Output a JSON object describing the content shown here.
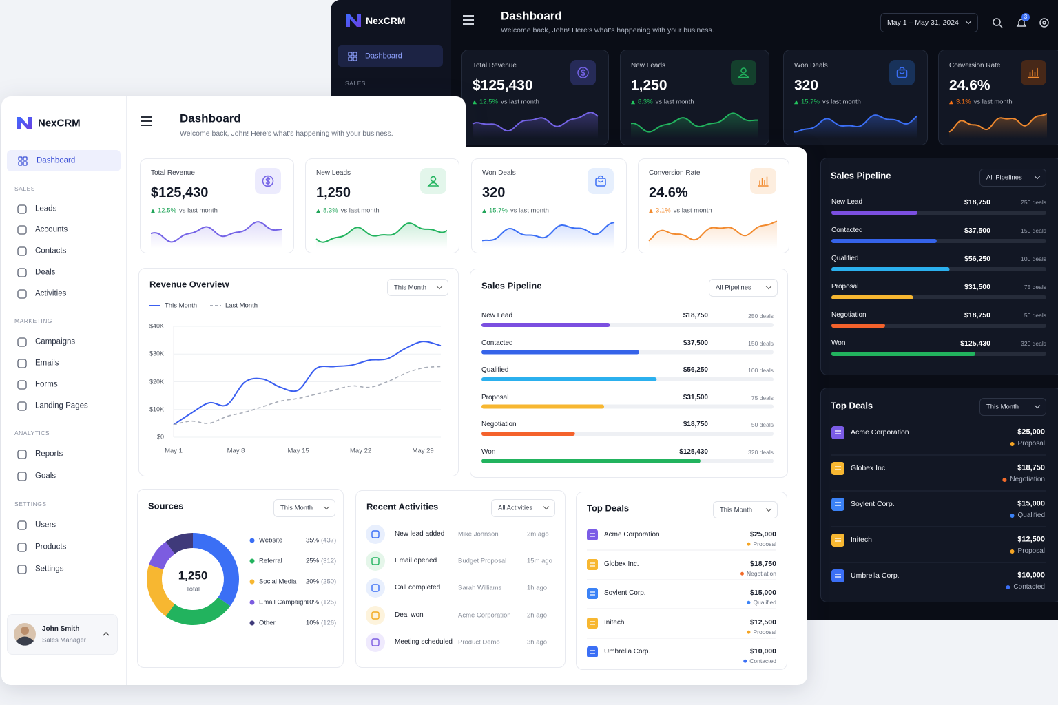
{
  "dark": {
    "sidebar": {
      "brand": "NexCRM",
      "active": "Dashboard",
      "section": "SALES"
    },
    "header": {
      "title": "Dashboard",
      "subtitle": "Welcome back, John! Here's what's happening with your business.",
      "date_range": "May 1 – May 31, 2024",
      "notifications": "3"
    },
    "kpis": [
      {
        "label": "Total Revenue",
        "value": "$125,430",
        "change": "12.5%",
        "note": "vs last month"
      },
      {
        "label": "New Leads",
        "value": "1,250",
        "change": "8.3%",
        "note": "vs last month"
      },
      {
        "label": "Won Deals",
        "value": "320",
        "change": "15.7%",
        "note": "vs last month"
      },
      {
        "label": "Conversion Rate",
        "value": "24.6%",
        "change": "3.1%",
        "note": "vs last month"
      }
    ],
    "pipeline": {
      "title": "Sales Pipeline",
      "filter": "All Pipelines",
      "stages": [
        {
          "name": "New Lead",
          "amount": "$18,750",
          "deals": "250 deals",
          "progress": 40
        },
        {
          "name": "Contacted",
          "amount": "$37,500",
          "deals": "150 deals",
          "progress": 49
        },
        {
          "name": "Qualified",
          "amount": "$56,250",
          "deals": "100 deals",
          "progress": 55
        },
        {
          "name": "Proposal",
          "amount": "$31,500",
          "deals": "75 deals",
          "progress": 38
        },
        {
          "name": "Negotiation",
          "amount": "$18,750",
          "deals": "50 deals",
          "progress": 25
        },
        {
          "name": "Won",
          "amount": "$125,430",
          "deals": "320 deals",
          "progress": 67
        }
      ]
    },
    "top_deals": {
      "title": "Top Deals",
      "filter": "This Month",
      "deals": [
        {
          "name": "Acme Corporation",
          "amount": "$25,000",
          "stage": "Proposal"
        },
        {
          "name": "Globex Inc.",
          "amount": "$18,750",
          "stage": "Negotiation"
        },
        {
          "name": "Soylent Corp.",
          "amount": "$15,000",
          "stage": "Qualified"
        },
        {
          "name": "Initech",
          "amount": "$12,500",
          "stage": "Proposal"
        },
        {
          "name": "Umbrella Corp.",
          "amount": "$10,000",
          "stage": "Contacted"
        }
      ]
    }
  },
  "light": {
    "sidebar": {
      "brand": "NexCRM",
      "active": "Dashboard",
      "sections": [
        {
          "title": "SALES",
          "items": [
            "Leads",
            "Accounts",
            "Contacts",
            "Deals",
            "Activities"
          ]
        },
        {
          "title": "MARKETING",
          "items": [
            "Campaigns",
            "Emails",
            "Forms",
            "Landing Pages"
          ]
        },
        {
          "title": "ANALYTICS",
          "items": [
            "Reports",
            "Goals"
          ]
        },
        {
          "title": "SETTINGS",
          "items": [
            "Users",
            "Products",
            "Settings"
          ]
        }
      ],
      "user": {
        "name": "John Smith",
        "role": "Sales Manager"
      }
    },
    "header": {
      "title": "Dashboard",
      "subtitle": "Welcome back, John! Here's what's happening with your business."
    },
    "kpis": [
      {
        "label": "Total Revenue",
        "value": "$125,430",
        "change": "12.5%",
        "note": "vs last month"
      },
      {
        "label": "New Leads",
        "value": "1,250",
        "change": "8.3%",
        "note": "vs last month"
      },
      {
        "label": "Won Deals",
        "value": "320",
        "change": "15.7%",
        "note": "vs last month"
      },
      {
        "label": "Conversion Rate",
        "value": "24.6%",
        "change": "3.1%",
        "note": "vs last month"
      }
    ],
    "revenue_overview": {
      "type": "line",
      "title": "Revenue Overview",
      "filter": "This Month",
      "x": [
        1,
        3,
        5,
        7,
        9,
        11,
        13,
        15,
        17,
        19,
        21,
        23,
        25,
        27,
        29,
        31
      ],
      "xlim": [
        1,
        31
      ],
      "xticks": [
        {
          "value": 1,
          "label": "May 1"
        },
        {
          "value": 8,
          "label": "May 8"
        },
        {
          "value": 15,
          "label": "May 15"
        },
        {
          "value": 22,
          "label": "May 22"
        },
        {
          "value": 29,
          "label": "May 29"
        }
      ],
      "ylim": [
        0,
        40000
      ],
      "yticks": [
        {
          "value": 0,
          "label": "$0"
        },
        {
          "value": 10000,
          "label": "$10K"
        },
        {
          "value": 20000,
          "label": "$20K"
        },
        {
          "value": 30000,
          "label": "$30K"
        },
        {
          "value": 40000,
          "label": "$40K"
        }
      ],
      "grid": true,
      "series": [
        {
          "name": "This Month",
          "color": "#3b5ff0",
          "dashed": false,
          "values": [
            4500,
            8700,
            12400,
            11700,
            19900,
            21000,
            18000,
            17000,
            24800,
            25500,
            26000,
            27800,
            28300,
            32000,
            34500,
            33000
          ]
        },
        {
          "name": "Last Month",
          "color": "#a8adb8",
          "dashed": true,
          "values": [
            4500,
            5800,
            5000,
            7500,
            9000,
            11000,
            13000,
            14000,
            15500,
            17000,
            18500,
            18000,
            20000,
            23000,
            25000,
            25500
          ]
        }
      ]
    },
    "pipeline": {
      "title": "Sales Pipeline",
      "filter": "All Pipelines",
      "stages": [
        {
          "name": "New Lead",
          "amount": "$18,750",
          "deals": "250 deals",
          "progress": 44
        },
        {
          "name": "Contacted",
          "amount": "$37,500",
          "deals": "150 deals",
          "progress": 54
        },
        {
          "name": "Qualified",
          "amount": "$56,250",
          "deals": "100 deals",
          "progress": 60
        },
        {
          "name": "Proposal",
          "amount": "$31,500",
          "deals": "75 deals",
          "progress": 42
        },
        {
          "name": "Negotiation",
          "amount": "$18,750",
          "deals": "50 deals",
          "progress": 32
        },
        {
          "name": "Won",
          "amount": "$125,430",
          "deals": "320 deals",
          "progress": 75
        }
      ]
    },
    "sources": {
      "type": "pie",
      "title": "Sources",
      "filter": "This Month",
      "total": "1,250",
      "total_label": "Total",
      "categories": [
        "Website",
        "Referral",
        "Social Media",
        "Email Campaign",
        "Other"
      ],
      "values": [
        35,
        25,
        20,
        10,
        10
      ],
      "value_labels": [
        "35%",
        "25%",
        "20%",
        "10%",
        "10%"
      ],
      "counts": [
        "(437)",
        "(312)",
        "(250)",
        "(125)",
        "(126)"
      ],
      "colors": [
        "#3b6ff5",
        "#22b35e",
        "#f7b731",
        "#7c5ce0",
        "#3f3a7a"
      ]
    },
    "activities": {
      "title": "Recent Activities",
      "filter": "All Activities",
      "items": [
        {
          "action": "New lead added",
          "detail": "Mike Johnson",
          "time": "2m ago"
        },
        {
          "action": "Email opened",
          "detail": "Budget Proposal",
          "time": "15m ago"
        },
        {
          "action": "Call completed",
          "detail": "Sarah Williams",
          "time": "1h ago"
        },
        {
          "action": "Deal won",
          "detail": "Acme Corporation",
          "time": "2h ago"
        },
        {
          "action": "Meeting scheduled",
          "detail": "Product Demo",
          "time": "3h ago"
        }
      ]
    },
    "top_deals": {
      "title": "Top Deals",
      "filter": "This Month",
      "deals": [
        {
          "name": "Acme Corporation",
          "amount": "$25,000",
          "stage": "Proposal"
        },
        {
          "name": "Globex Inc.",
          "amount": "$18,750",
          "stage": "Negotiation"
        },
        {
          "name": "Soylent Corp.",
          "amount": "$15,000",
          "stage": "Qualified"
        },
        {
          "name": "Initech",
          "amount": "$12,500",
          "stage": "Proposal"
        },
        {
          "name": "Umbrella Corp.",
          "amount": "$10,000",
          "stage": "Contacted"
        }
      ]
    }
  }
}
